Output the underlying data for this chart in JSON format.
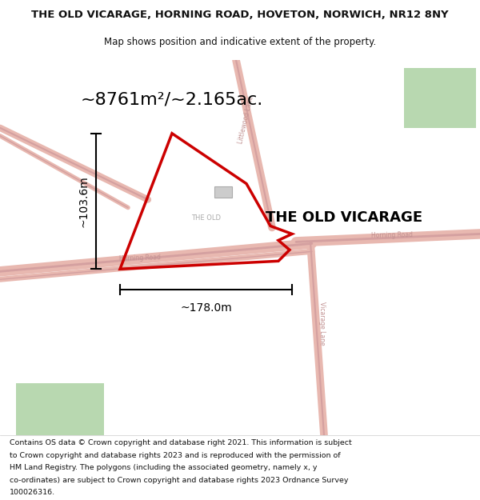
{
  "title": "THE OLD VICARAGE, HORNING ROAD, HOVETON, NORWICH, NR12 8NY",
  "subtitle": "Map shows position and indicative extent of the property.",
  "area_text": "~8761m²/~2.165ac.",
  "width_label": "~178.0m",
  "height_label": "~103.6m",
  "property_label_small": "THE OLD",
  "property_label_big": "THE OLD VICARAGE",
  "footer_lines": [
    "Contains OS data © Crown copyright and database right 2021. This information is subject",
    "to Crown copyright and database rights 2023 and is reproduced with the permission of",
    "HM Land Registry. The polygons (including the associated geometry, namely x, y",
    "co-ordinates) are subject to Crown copyright and database rights 2023 Ordnance Survey",
    "100026316."
  ],
  "map_bg": "#f2eeeb",
  "road_color": "#e8b8b0",
  "road_outline": "#d4a0a0",
  "polygon_color": "#cc0000",
  "title_color": "#111111",
  "green_patch_color": "#b8d8b0",
  "figsize": [
    6.0,
    6.25
  ],
  "dpi": 100
}
